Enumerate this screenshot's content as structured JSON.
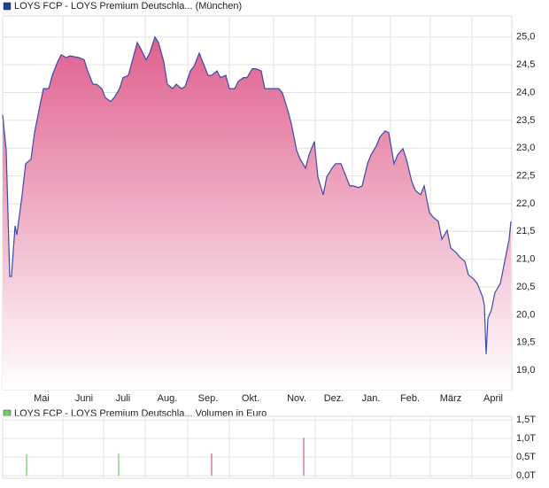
{
  "chart_data": [
    {
      "type": "area",
      "legend": "LOYS FCP - LOYS Premium Deutschla... (München)",
      "legend_color": "#1f3f8f",
      "fill_color": "#e0608f",
      "xlim": [
        0,
        287.5
      ],
      "xticks": [
        {
          "value": 22,
          "label": "Mai"
        },
        {
          "value": 46,
          "label": "Juni"
        },
        {
          "value": 68,
          "label": "Juli"
        },
        {
          "value": 93,
          "label": "Aug."
        },
        {
          "value": 116,
          "label": "Sep."
        },
        {
          "value": 140,
          "label": "Okt."
        },
        {
          "value": 166,
          "label": "Nov."
        },
        {
          "value": 187,
          "label": "Dez."
        },
        {
          "value": 208,
          "label": "Jan."
        },
        {
          "value": 230,
          "label": "Feb."
        },
        {
          "value": 253,
          "label": "März"
        },
        {
          "value": 277,
          "label": "April"
        }
      ],
      "ylim": [
        18.65,
        25.38
      ],
      "yticks": [
        {
          "value": 19,
          "label": "19,0"
        },
        {
          "value": 19.5,
          "label": "19,5"
        },
        {
          "value": 20,
          "label": "20,0"
        },
        {
          "value": 20.5,
          "label": "20,5"
        },
        {
          "value": 21,
          "label": "21,0"
        },
        {
          "value": 21.5,
          "label": "21,5"
        },
        {
          "value": 22,
          "label": "22,0"
        },
        {
          "value": 22.5,
          "label": "22,5"
        },
        {
          "value": 23,
          "label": "23,0"
        },
        {
          "value": 23.5,
          "label": "23,5"
        },
        {
          "value": 24,
          "label": "24,0"
        },
        {
          "value": 24.5,
          "label": "24,5"
        },
        {
          "value": 25,
          "label": "25,0"
        }
      ],
      "grid": true,
      "x": [
        0,
        2,
        4,
        5,
        7,
        8,
        11,
        13,
        16,
        18,
        21,
        23,
        26,
        28,
        31,
        33,
        36,
        38,
        43,
        46,
        48,
        51,
        53,
        56,
        58,
        61,
        63,
        66,
        68,
        71,
        73,
        76,
        78,
        81,
        83,
        86,
        88,
        91,
        93,
        96,
        98,
        101,
        103,
        106,
        108,
        111,
        113,
        116,
        118,
        121,
        123,
        126,
        128,
        131,
        133,
        136,
        138,
        141,
        143,
        146,
        148,
        151,
        153,
        156,
        158,
        161,
        163,
        166,
        168,
        171,
        173,
        176,
        178,
        181,
        183,
        186,
        188,
        191,
        193,
        196,
        198,
        201,
        203,
        206,
        208,
        211,
        213,
        216,
        218,
        221,
        223,
        226,
        228,
        231,
        233,
        236,
        238,
        241,
        243,
        246,
        248,
        251,
        253,
        256,
        258,
        261,
        263,
        266,
        268,
        271,
        272,
        273,
        274,
        276,
        278,
        281,
        283,
        286,
        287
      ],
      "series": [
        {
          "name": "LOYS FCP - LOYS Premium Deutschla... (München)",
          "color": "#3c4aa8",
          "values": [
            23.6,
            22.96,
            20.69,
            20.69,
            21.6,
            21.44,
            22.16,
            22.72,
            22.8,
            23.28,
            23.76,
            24.07,
            24.07,
            24.31,
            24.55,
            24.68,
            24.63,
            24.66,
            24.63,
            24.59,
            24.39,
            24.15,
            24.15,
            24.07,
            23.91,
            23.84,
            23.91,
            24.07,
            24.27,
            24.31,
            24.55,
            24.9,
            24.79,
            24.59,
            24.71,
            25.0,
            24.9,
            24.55,
            24.15,
            24.07,
            24.15,
            24.07,
            24.11,
            24.39,
            24.47,
            24.71,
            24.55,
            24.31,
            24.31,
            24.39,
            24.27,
            24.31,
            24.07,
            24.07,
            24.2,
            24.27,
            24.27,
            24.43,
            24.43,
            24.39,
            24.07,
            24.07,
            24.07,
            24.07,
            23.99,
            23.68,
            23.44,
            22.96,
            22.8,
            22.64,
            22.88,
            23.12,
            22.48,
            22.16,
            22.48,
            22.64,
            22.72,
            22.72,
            22.56,
            22.32,
            22.32,
            22.29,
            22.32,
            22.72,
            22.88,
            23.04,
            23.2,
            23.31,
            23.28,
            22.72,
            22.88,
            22.99,
            22.8,
            22.4,
            22.24,
            22.16,
            22.32,
            21.84,
            21.76,
            21.68,
            21.36,
            21.52,
            21.2,
            21.12,
            21.04,
            20.96,
            20.72,
            20.64,
            20.56,
            20.32,
            20.17,
            19.29,
            19.93,
            20.09,
            20.4,
            20.56,
            20.88,
            21.36,
            21.68
          ]
        }
      ]
    },
    {
      "type": "bar",
      "legend": "LOYS FCP - LOYS Premium Deutschla... Volumen in Euro",
      "legend_color": "#6ccc6c",
      "xlim": [
        0,
        287.5
      ],
      "ylim": [
        -0.07,
        1.6
      ],
      "yticks": [
        {
          "value": 0,
          "label": "0,0T"
        },
        {
          "value": 0.5,
          "label": "0,5T"
        },
        {
          "value": 1,
          "label": "1,0T"
        },
        {
          "value": 1.5,
          "label": "1,5T"
        }
      ],
      "grid": true,
      "x": [
        13.5,
        65.5,
        118,
        170
      ],
      "values": [
        0.58,
        0.6,
        0.6,
        1.02
      ],
      "colors": [
        "#6ccc6c",
        "#6ccc6c",
        "#c8607a",
        "#c8607a"
      ]
    }
  ]
}
